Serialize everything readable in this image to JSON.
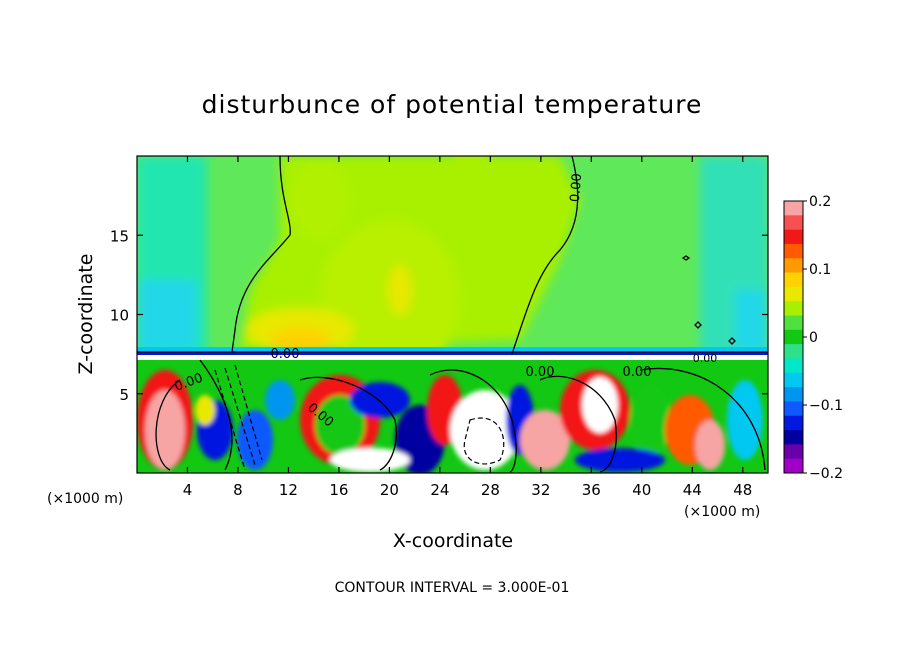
{
  "chart_data": {
    "type": "heatmap",
    "title": "disturbunce of potential temperature",
    "xlabel": "X-coordinate",
    "ylabel": "Z-coordinate",
    "x_unit_label": "(×1000 m)",
    "x_unit_label_right": "(×1000 m)",
    "x_ticks": [
      4,
      8,
      12,
      16,
      20,
      24,
      28,
      32,
      36,
      40,
      44,
      48
    ],
    "y_ticks": [
      5,
      10,
      15
    ],
    "xlim": [
      0,
      50
    ],
    "ylim": [
      0,
      20
    ],
    "colorbar": {
      "ticks": [
        "0.2",
        "0.1",
        "0",
        "−0.1",
        "−0.2"
      ],
      "range": [
        -0.2,
        0.2
      ],
      "colors": [
        "#f7a4a4",
        "#f75050",
        "#f21818",
        "#ff5a00",
        "#ff9a00",
        "#ffd200",
        "#e8e800",
        "#a8f000",
        "#50e040",
        "#12c812",
        "#2ee08a",
        "#00e8c8",
        "#00c8f0",
        "#0096f0",
        "#1058ff",
        "#0018e0",
        "#0000a0",
        "#6a00a8",
        "#a000c8"
      ]
    },
    "contour_labels": [
      "0.00",
      "0.00",
      "0.00",
      "0.00",
      "0.00",
      "0.00",
      "0.00"
    ],
    "annotation": "CONTOUR INTERVAL = 3.000E-01"
  }
}
